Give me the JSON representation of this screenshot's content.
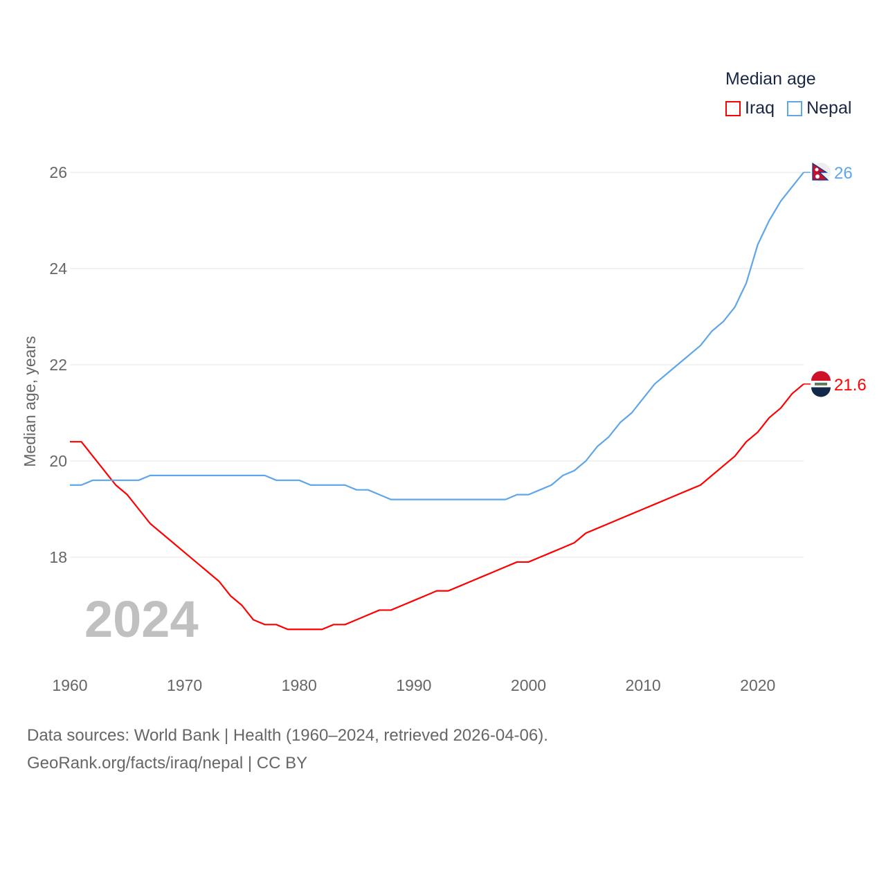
{
  "chart_data": {
    "type": "line",
    "title": "",
    "xlabel": "",
    "ylabel": "Median age, years",
    "xlim": [
      1960,
      2024
    ],
    "ylim": [
      15.9,
      26.6
    ],
    "y_ticks": [
      "18",
      "20",
      "22",
      "24",
      "26"
    ],
    "x_ticks": [
      "1960",
      "1970",
      "1980",
      "1990",
      "2000",
      "2010",
      "2020"
    ],
    "grid": true,
    "year_label": "2024",
    "legend": {
      "title": "Median age",
      "placement": "top-right"
    },
    "x": [
      1960,
      1961,
      1962,
      1963,
      1964,
      1965,
      1966,
      1967,
      1968,
      1969,
      1970,
      1971,
      1972,
      1973,
      1974,
      1975,
      1976,
      1977,
      1978,
      1979,
      1980,
      1981,
      1982,
      1983,
      1984,
      1985,
      1986,
      1987,
      1988,
      1989,
      1990,
      1991,
      1992,
      1993,
      1994,
      1995,
      1996,
      1997,
      1998,
      1999,
      2000,
      2001,
      2002,
      2003,
      2004,
      2005,
      2006,
      2007,
      2008,
      2009,
      2010,
      2011,
      2012,
      2013,
      2014,
      2015,
      2016,
      2017,
      2018,
      2019,
      2020,
      2021,
      2022,
      2023,
      2024
    ],
    "series": [
      {
        "name": "Iraq",
        "color": "#ff0000",
        "end_label": "21.6",
        "values": [
          20.4,
          20.4,
          20.1,
          19.8,
          19.5,
          19.3,
          19.0,
          18.7,
          18.5,
          18.3,
          18.1,
          17.9,
          17.7,
          17.5,
          17.2,
          17.0,
          16.7,
          16.6,
          16.6,
          16.5,
          16.5,
          16.5,
          16.5,
          16.6,
          16.6,
          16.7,
          16.8,
          16.9,
          16.9,
          17.0,
          17.1,
          17.2,
          17.3,
          17.3,
          17.4,
          17.5,
          17.6,
          17.7,
          17.8,
          17.9,
          17.9,
          18.0,
          18.1,
          18.2,
          18.3,
          18.5,
          18.6,
          18.7,
          18.8,
          18.9,
          19.0,
          19.1,
          19.2,
          19.3,
          19.4,
          19.5,
          19.7,
          19.9,
          20.1,
          20.4,
          20.6,
          20.9,
          21.1,
          21.4,
          21.6
        ]
      },
      {
        "name": "Nepal",
        "color": "#5ea5ea",
        "end_label": "26",
        "values": [
          19.5,
          19.5,
          19.6,
          19.6,
          19.6,
          19.6,
          19.6,
          19.7,
          19.7,
          19.7,
          19.7,
          19.7,
          19.7,
          19.7,
          19.7,
          19.7,
          19.7,
          19.7,
          19.6,
          19.6,
          19.6,
          19.5,
          19.5,
          19.5,
          19.5,
          19.4,
          19.4,
          19.3,
          19.2,
          19.2,
          19.2,
          19.2,
          19.2,
          19.2,
          19.2,
          19.2,
          19.2,
          19.2,
          19.2,
          19.3,
          19.3,
          19.4,
          19.5,
          19.7,
          19.8,
          20.0,
          20.3,
          20.5,
          20.8,
          21.0,
          21.3,
          21.6,
          21.8,
          22.0,
          22.2,
          22.4,
          22.7,
          22.9,
          23.2,
          23.7,
          24.5,
          25.0,
          25.4,
          25.7,
          26.0
        ]
      }
    ]
  },
  "footer": {
    "line1": "Data sources: World Bank | Health (1960–2024, retrieved 2026-04-06).",
    "line2": "GeoRank.org/facts/iraq/nepal | CC BY"
  }
}
